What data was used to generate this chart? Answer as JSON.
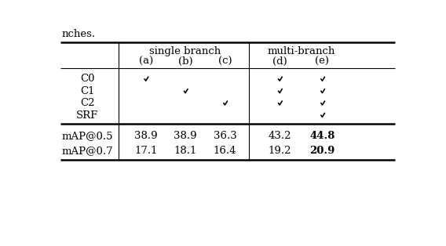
{
  "title_text": "nches.",
  "header1_text": "single branch",
  "header2_text": "multi-branch",
  "col_headers": [
    "(a)",
    "(b)",
    "(c)",
    "(d)",
    "(e)"
  ],
  "row_labels": [
    "C0",
    "C1",
    "C2",
    "SRF"
  ],
  "checkmarks": {
    "C0": [
      "a",
      "d",
      "e"
    ],
    "C1": [
      "b",
      "d",
      "e"
    ],
    "C2": [
      "c",
      "d",
      "e"
    ],
    "SRF": [
      "e"
    ]
  },
  "metric_labels": [
    "mAP@0.5",
    "mAP@0.7"
  ],
  "metric_values": {
    "mAP@0.5": [
      "38.9",
      "38.9",
      "36.3",
      "43.2",
      "44.8"
    ],
    "mAP@0.7": [
      "17.1",
      "18.1",
      "16.4",
      "19.2",
      "20.9"
    ]
  },
  "bg_color": "#ffffff",
  "text_color": "#000000",
  "line_color": "#000000"
}
